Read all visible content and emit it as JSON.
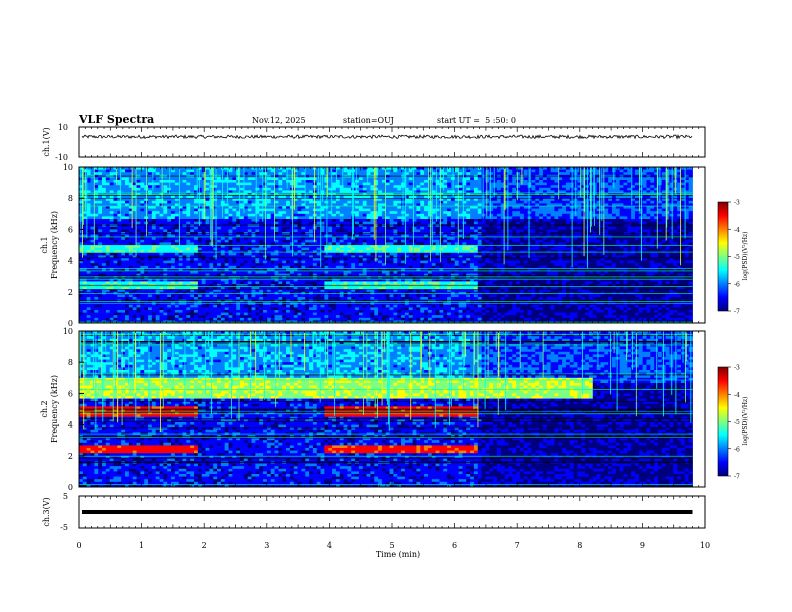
{
  "header": {
    "title": "VLF Spectra",
    "date": "Nov.12, 2025",
    "station": "station=OUJ",
    "start": "start UT =  5 :50: 0"
  },
  "chart_data": [
    {
      "type": "line",
      "ylabel": "ch.1(V)",
      "ylim": [
        -10,
        10
      ],
      "yticks": [
        "10",
        "-10"
      ],
      "baseline": 3.5
    },
    {
      "type": "heatmap",
      "ylabel": "ch.1\nFrequency (kHz)",
      "ylim": [
        0,
        10
      ],
      "yticks": [
        "0",
        "2",
        "4",
        "6",
        "8",
        "10"
      ],
      "colorbar": {
        "label": "log(PSD)(V²/Hz)",
        "range": [
          -7,
          -3
        ],
        "ticks": [
          "-3",
          "-4",
          "-5",
          "-6",
          "-7"
        ]
      },
      "bands_khz": [
        {
          "lo": 4.6,
          "hi": 5.1,
          "segments": [
            [
              0,
              1.9
            ],
            [
              3.9,
              6.4
            ]
          ],
          "level": -5.3
        },
        {
          "lo": 2.2,
          "hi": 2.7,
          "segments": [
            [
              0,
              1.9
            ],
            [
              3.9,
              6.4
            ]
          ],
          "level": -5.3
        }
      ]
    },
    {
      "type": "heatmap",
      "ylabel": "ch.2\nFrequency (kHz)",
      "ylim": [
        0,
        10
      ],
      "yticks": [
        "0",
        "2",
        "4",
        "6",
        "8",
        "10"
      ],
      "colorbar": {
        "label": "log(PSD)(V²/Hz)",
        "range": [
          -7,
          -3
        ],
        "ticks": [
          "-3",
          "-4",
          "-5",
          "-6",
          "-7"
        ]
      },
      "bands_khz": [
        {
          "lo": 4.6,
          "hi": 5.2,
          "segments": [
            [
              0,
              1.9
            ],
            [
              3.9,
              6.4
            ]
          ],
          "level": -3.6
        },
        {
          "lo": 2.3,
          "hi": 2.8,
          "segments": [
            [
              0,
              1.9
            ],
            [
              3.9,
              6.4
            ]
          ],
          "level": -3.6
        },
        {
          "lo": 5.8,
          "hi": 7.0,
          "segments": [
            [
              0,
              8.2
            ]
          ],
          "level": -4.8
        }
      ]
    },
    {
      "type": "line",
      "ylabel": "ch.3(V)",
      "ylim": [
        -5,
        5
      ],
      "yticks": [
        "5",
        "0",
        "-5"
      ],
      "baseline": 0
    }
  ],
  "xaxis": {
    "label": "Time (min)",
    "range": [
      0,
      10
    ],
    "ticks": [
      "0",
      "1",
      "2",
      "3",
      "4",
      "5",
      "6",
      "7",
      "8",
      "9",
      "10"
    ],
    "data_end": 9.8
  },
  "colors": {
    "colormap": [
      "#00007f",
      "#0000ff",
      "#007fff",
      "#00ffff",
      "#7fff7f",
      "#ffff00",
      "#ff7f00",
      "#ff0000",
      "#7f0000"
    ]
  }
}
